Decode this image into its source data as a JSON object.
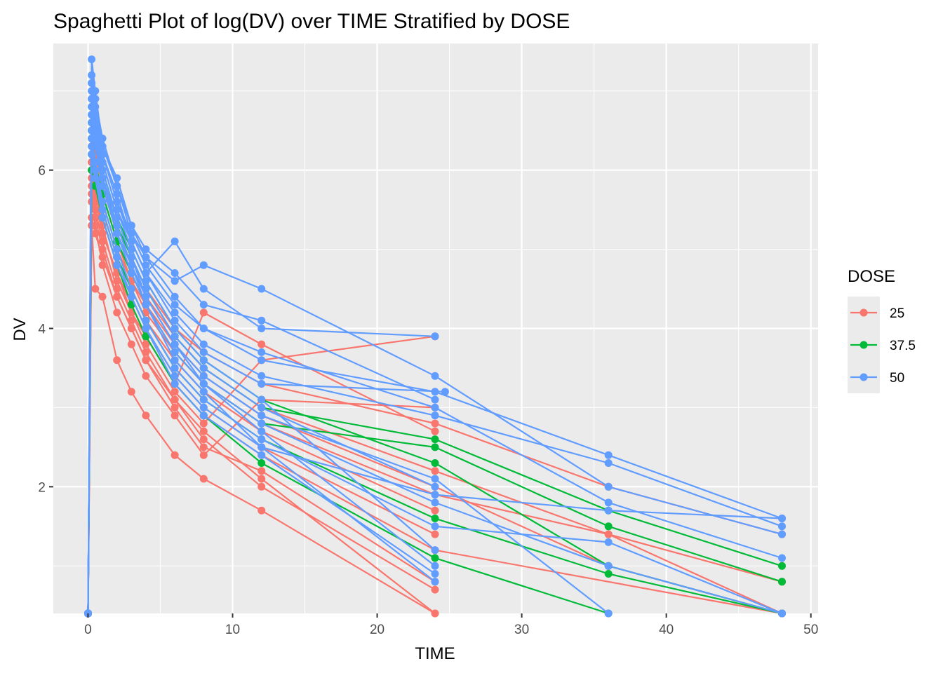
{
  "chart_data": {
    "type": "line",
    "title": "Spaghetti Plot of log(DV) over TIME Stratified by DOSE",
    "xlabel": "TIME",
    "ylabel": "DV",
    "xlim": [
      -2.4,
      50.5
    ],
    "ylim": [
      0.4,
      7.6
    ],
    "x_ticks": [
      0,
      10,
      20,
      30,
      40,
      50
    ],
    "y_ticks": [
      2,
      4,
      6
    ],
    "grid": true,
    "markers": true,
    "legend": {
      "title": "DOSE",
      "position": "right"
    },
    "colors": {
      "25": "#f8766d",
      "37.5": "#00ba38",
      "50": "#619cff"
    },
    "series": [
      {
        "name": "25",
        "color": "#f8766d",
        "subjects": [
          {
            "x": [
              0,
              0.25,
              0.5,
              1,
              2,
              3,
              4,
              6,
              8,
              12,
              24,
              48
            ],
            "y": [
              0.4,
              5.9,
              5.6,
              5.2,
              4.7,
              4.3,
              3.9,
              3.3,
              2.9,
              2.4,
              1.2,
              0.4
            ]
          },
          {
            "x": [
              0,
              0.25,
              0.5,
              1,
              2,
              3,
              4,
              6,
              8,
              12,
              24,
              36,
              48
            ],
            "y": [
              0.4,
              6.3,
              6.1,
              5.6,
              5.0,
              4.6,
              4.2,
              3.7,
              3.3,
              2.8,
              1.9,
              1.4,
              0.8
            ]
          },
          {
            "x": [
              0,
              0.25,
              0.5,
              1,
              2,
              3,
              4,
              6,
              8,
              12,
              24
            ],
            "y": [
              0.4,
              5.4,
              5.2,
              4.9,
              4.4,
              4.0,
              3.6,
              3.1,
              2.7,
              2.1,
              0.4
            ]
          },
          {
            "x": [
              0,
              0.25,
              0.5,
              1,
              2,
              3,
              4,
              6,
              8,
              12,
              24,
              36,
              48
            ],
            "y": [
              0.4,
              6.6,
              6.2,
              5.8,
              5.2,
              4.8,
              4.4,
              3.9,
              3.5,
              3.0,
              2.2,
              1.4,
              0.4
            ]
          },
          {
            "x": [
              0,
              0.25,
              0.5,
              1,
              2,
              3,
              4,
              6,
              8,
              12,
              24
            ],
            "y": [
              0.4,
              6.1,
              5.9,
              5.4,
              4.8,
              4.4,
              4.0,
              3.4,
              3.0,
              2.5,
              1.4
            ]
          },
          {
            "x": [
              0,
              0.25,
              0.5,
              1,
              2,
              3,
              4,
              6,
              8,
              12,
              24
            ],
            "y": [
              0.4,
              5.8,
              5.5,
              5.1,
              4.5,
              4.1,
              3.7,
              3.1,
              2.6,
              2.0,
              0.7
            ]
          },
          {
            "x": [
              0,
              0.25,
              0.5,
              1,
              2,
              3,
              4,
              6,
              8,
              12,
              24,
              36,
              48
            ],
            "y": [
              0.4,
              6.4,
              6.0,
              5.7,
              5.1,
              4.6,
              4.3,
              3.8,
              3.4,
              2.9,
              2.0,
              1.0,
              0.4
            ]
          },
          {
            "x": [
              0,
              0.25,
              0.5,
              1,
              2,
              3,
              4,
              6,
              8,
              12,
              24
            ],
            "y": [
              0.4,
              5.3,
              4.5,
              4.4,
              3.6,
              3.2,
              2.9,
              2.4,
              2.1,
              1.7,
              0.4
            ]
          },
          {
            "x": [
              0,
              0.25,
              0.5,
              1,
              2,
              3,
              4,
              6,
              8,
              12,
              24
            ],
            "y": [
              0.4,
              6.0,
              5.7,
              5.3,
              4.6,
              4.2,
              3.8,
              3.2,
              2.8,
              3.6,
              3.9
            ]
          },
          {
            "x": [
              0,
              0.25,
              0.5,
              1,
              2,
              3,
              4,
              6,
              8,
              12,
              24,
              36,
              48
            ],
            "y": [
              0.4,
              6.5,
              6.2,
              5.9,
              5.3,
              4.9,
              4.5,
              4.0,
              3.7,
              3.3,
              2.8,
              2.0,
              1.4
            ]
          },
          {
            "x": [
              0,
              0.25,
              0.5,
              1,
              2,
              3,
              4,
              6,
              8,
              12,
              24
            ],
            "y": [
              0.4,
              5.6,
              5.4,
              5.0,
              4.4,
              4.0,
              3.6,
              3.0,
              2.5,
              2.2,
              0.8
            ]
          },
          {
            "x": [
              0,
              0.25,
              0.5,
              1,
              2,
              3,
              4,
              6,
              8,
              12,
              24
            ],
            "y": [
              0.4,
              6.2,
              6.0,
              5.5,
              4.9,
              4.5,
              4.1,
              3.6,
              3.2,
              2.7,
              1.7
            ]
          },
          {
            "x": [
              0,
              0.25,
              0.5,
              1,
              2,
              3,
              4,
              6,
              8,
              12,
              24
            ],
            "y": [
              0.4,
              5.7,
              5.3,
              4.8,
              4.2,
              3.8,
              3.4,
              2.9,
              2.4,
              3.1,
              3.0
            ]
          },
          {
            "x": [
              0,
              0.25,
              0.5,
              1,
              2,
              3,
              4,
              6,
              8,
              12,
              24
            ],
            "y": [
              0.4,
              6.1,
              5.8,
              5.2,
              4.7,
              4.2,
              3.9,
              3.3,
              4.2,
              3.8,
              2.7
            ]
          }
        ]
      },
      {
        "name": "37.5",
        "color": "#00ba38",
        "subjects": [
          {
            "x": [
              0,
              0.25,
              0.5,
              1,
              2,
              3,
              4,
              6,
              8,
              12,
              24,
              36,
              48
            ],
            "y": [
              0.4,
              6.5,
              6.3,
              5.9,
              5.3,
              4.9,
              4.5,
              3.9,
              3.5,
              3.0,
              2.6,
              1.7,
              1.0
            ]
          },
          {
            "x": [
              0,
              0.25,
              0.5,
              1,
              2,
              3,
              4,
              6,
              8,
              12,
              24,
              36,
              48
            ],
            "y": [
              0.4,
              6.2,
              5.9,
              5.5,
              4.9,
              4.5,
              4.1,
              3.5,
              3.1,
              2.6,
              1.6,
              0.9,
              0.4
            ]
          },
          {
            "x": [
              0,
              0.25,
              0.5,
              1,
              2,
              3,
              4,
              6,
              8,
              12,
              24,
              36,
              48
            ],
            "y": [
              0.4,
              6.6,
              6.4,
              6.0,
              5.4,
              5.0,
              4.6,
              4.0,
              3.6,
              3.1,
              2.3,
              1.0,
              0.4
            ]
          },
          {
            "x": [
              0,
              0.25,
              0.5,
              1,
              2,
              3,
              4,
              6,
              8,
              12,
              24,
              36
            ],
            "y": [
              0.4,
              6.0,
              5.8,
              5.4,
              4.8,
              4.3,
              3.9,
              3.3,
              2.9,
              2.3,
              1.1,
              0.4
            ]
          },
          {
            "x": [
              0,
              0.25,
              0.5,
              1,
              2,
              3,
              4,
              6,
              8,
              12,
              24,
              36,
              48
            ],
            "y": [
              0.4,
              6.4,
              6.1,
              5.7,
              5.1,
              4.7,
              4.3,
              3.7,
              3.3,
              2.8,
              2.5,
              1.5,
              0.8
            ]
          }
        ]
      },
      {
        "name": "50",
        "color": "#619cff",
        "subjects": [
          {
            "x": [
              0,
              0.25,
              0.5,
              1,
              2,
              3,
              4,
              6,
              8,
              12,
              24,
              36,
              48
            ],
            "y": [
              0.4,
              7.4,
              7.0,
              6.3,
              5.8,
              5.3,
              4.9,
              4.4,
              4.0,
              3.6,
              3.2,
              2.4,
              1.6
            ]
          },
          {
            "x": [
              0,
              0.25,
              0.5,
              1,
              2,
              3,
              4,
              6,
              8,
              12,
              24,
              36,
              48
            ],
            "y": [
              0.4,
              7.1,
              6.8,
              6.2,
              5.6,
              5.1,
              4.7,
              4.2,
              3.8,
              3.4,
              2.9,
              2.3,
              1.5
            ]
          },
          {
            "x": [
              0,
              0.25,
              0.5,
              1,
              2,
              3,
              4,
              6,
              8,
              12,
              24
            ],
            "y": [
              0.4,
              6.9,
              6.5,
              6.0,
              5.4,
              4.9,
              4.5,
              3.9,
              3.5,
              3.0,
              2.0
            ]
          },
          {
            "x": [
              0,
              0.25,
              0.5,
              1,
              2,
              3,
              4,
              6,
              8,
              12,
              24,
              36,
              48
            ],
            "y": [
              0.4,
              7.2,
              6.9,
              6.4,
              5.8,
              5.2,
              4.9,
              4.6,
              4.8,
              4.5,
              3.4,
              2.0,
              1.4
            ]
          },
          {
            "x": [
              0,
              0.25,
              0.5,
              1,
              2,
              3,
              4,
              6,
              8,
              12,
              24,
              36,
              48
            ],
            "y": [
              0.4,
              6.7,
              6.4,
              5.9,
              5.2,
              4.8,
              4.3,
              3.7,
              3.3,
              2.8,
              1.8,
              1.0,
              0.4
            ]
          },
          {
            "x": [
              0,
              0.25,
              0.5,
              1,
              2,
              3,
              4,
              6,
              8,
              12,
              24
            ],
            "y": [
              0.4,
              6.8,
              6.5,
              6.1,
              5.5,
              5.0,
              4.6,
              4.0,
              3.6,
              3.1,
              1.2
            ]
          },
          {
            "x": [
              0,
              0.25,
              0.5,
              1,
              2,
              3,
              4,
              6,
              8,
              12,
              24
            ],
            "y": [
              0.4,
              6.5,
              6.3,
              5.8,
              5.2,
              4.7,
              4.3,
              3.6,
              3.2,
              2.5,
              0.8
            ]
          },
          {
            "x": [
              0,
              0.25,
              0.5,
              1,
              2,
              3,
              4,
              6,
              8,
              12,
              24,
              36,
              48
            ],
            "y": [
              0.4,
              7.0,
              6.7,
              6.2,
              5.6,
              5.2,
              4.8,
              4.3,
              4.0,
              3.7,
              3.0,
              1.8,
              1.1
            ]
          },
          {
            "x": [
              0,
              0.25,
              0.5,
              1,
              2,
              3,
              4,
              6,
              8,
              12,
              24,
              36
            ],
            "y": [
              0.4,
              6.6,
              6.3,
              5.9,
              5.3,
              4.8,
              4.4,
              3.8,
              3.4,
              2.9,
              2.1,
              0.4
            ]
          },
          {
            "x": [
              0,
              0.25,
              0.5,
              1,
              2,
              3,
              4,
              6,
              8,
              12,
              24
            ],
            "y": [
              0.4,
              6.9,
              6.6,
              6.2,
              5.7,
              5.1,
              4.7,
              5.1,
              4.5,
              4.0,
              3.9
            ]
          },
          {
            "x": [
              0,
              0.25,
              0.5,
              1,
              2,
              3,
              4,
              6,
              8,
              12,
              24,
              36,
              48
            ],
            "y": [
              0.4,
              6.4,
              6.1,
              5.6,
              5.0,
              4.5,
              4.1,
              3.5,
              3.1,
              2.6,
              1.5,
              1.3,
              0.4
            ]
          },
          {
            "x": [
              0,
              0.25,
              0.5,
              1,
              2,
              3,
              4,
              6,
              8,
              12,
              24
            ],
            "y": [
              0.4,
              7.1,
              6.9,
              6.3,
              5.9,
              5.3,
              5.0,
              4.7,
              4.3,
              4.1,
              3.1
            ]
          },
          {
            "x": [
              0,
              0.25,
              0.5,
              1,
              2,
              3,
              4,
              6,
              8,
              12,
              24,
              36,
              48
            ],
            "y": [
              0.4,
              6.3,
              6.0,
              5.5,
              4.9,
              4.4,
              4.0,
              3.4,
              3.0,
              2.5,
              1.9,
              1.7,
              1.6
            ]
          },
          {
            "x": [
              0,
              0.25,
              0.5,
              1,
              2,
              3,
              4,
              6,
              8,
              12,
              24
            ],
            "y": [
              0.4,
              6.7,
              6.4,
              5.9,
              5.4,
              4.9,
              4.4,
              3.8,
              3.3,
              2.7,
              1.0
            ]
          },
          {
            "x": [
              0,
              0.25,
              0.5,
              1,
              2,
              3,
              4,
              6,
              8,
              12,
              24
            ],
            "y": [
              0.4,
              6.2,
              5.9,
              5.4,
              4.8,
              4.4,
              4.0,
              3.3,
              2.9,
              2.4,
              0.9
            ]
          },
          {
            "x": [
              0,
              0.25,
              0.5,
              1,
              2,
              3,
              4,
              6,
              8,
              12,
              24.7
            ],
            "y": [
              0.4,
              6.8,
              6.6,
              6.1,
              5.5,
              5.1,
              4.7,
              4.1,
              3.7,
              3.3,
              3.2
            ]
          }
        ]
      }
    ]
  }
}
